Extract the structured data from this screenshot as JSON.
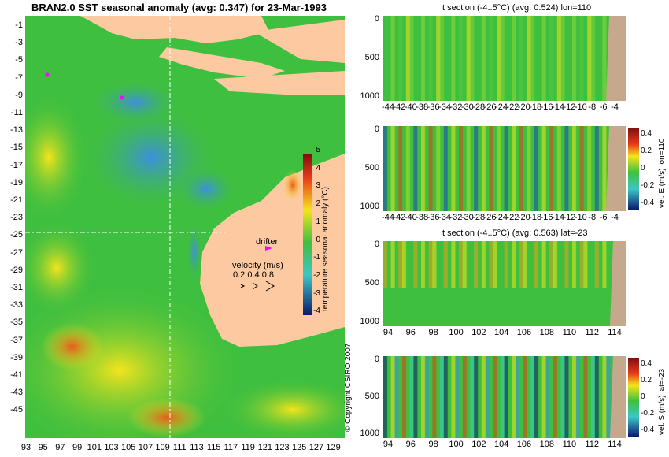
{
  "main_title": "BRAN2.0 SST seasonal anomaly (avg: 0.347) for 23-Mar-1993",
  "map": {
    "x_ticks": [
      "93",
      "95",
      "97",
      "99",
      "101",
      "103",
      "105",
      "107",
      "109",
      "111",
      "113",
      "115",
      "117",
      "119",
      "121",
      "123",
      "125",
      "127",
      "129"
    ],
    "y_ticks": [
      "-1",
      "-3",
      "-5",
      "-7",
      "-9",
      "-11",
      "-13",
      "-15",
      "-17",
      "-19",
      "-21",
      "-23",
      "-25",
      "-27",
      "-29",
      "-31",
      "-33",
      "-35",
      "-37",
      "-39",
      "-41",
      "-43",
      "-45"
    ],
    "drifter_label": "drifter",
    "velocity_title": "velocity (m/s)",
    "velocity_scale": "0.2 0.4 0.8",
    "colorbar_label": "temperature seasonal anomaly (°C)",
    "colorbar_ticks": [
      "5",
      "4",
      "3",
      "2",
      "1",
      "0",
      "-1",
      "-2",
      "-3",
      "-4"
    ],
    "copyright": "© Copyright CSIRO 2007",
    "colors": {
      "ocean": "#3fbf3f",
      "land": "#fdc9a1",
      "warm": "#f2e21a",
      "hot": "#e8391b",
      "cold": "#3e8fe0",
      "drifter": "#ff00ff"
    }
  },
  "panels": [
    {
      "title": "t section (-4..5°C) (avg: 0.524) lon=110",
      "x_ticks": [
        "-44",
        "-42",
        "-40",
        "-38",
        "-36",
        "-34",
        "-32",
        "-30",
        "-28",
        "-26",
        "-24",
        "-22",
        "-20",
        "-18",
        "-16",
        "-14",
        "-12",
        "-10",
        "-8",
        "-6",
        "-4"
      ],
      "y_ticks": [
        "0",
        "500",
        "1000"
      ],
      "colorbar": false
    },
    {
      "title": "",
      "x_ticks": [
        "-44",
        "-42",
        "-40",
        "-38",
        "-36",
        "-34",
        "-32",
        "-30",
        "-28",
        "-26",
        "-24",
        "-22",
        "-20",
        "-18",
        "-16",
        "-14",
        "-12",
        "-10",
        "-8",
        "-6",
        "-4"
      ],
      "y_ticks": [
        "0",
        "500",
        "1000"
      ],
      "colorbar": true,
      "colorbar_label": "vel. E (m/s) lon=110",
      "colorbar_ticks": [
        "0.4",
        "0.2",
        "0",
        "-0.2",
        "-0.4"
      ]
    },
    {
      "title": "t section (-4..5°C) (avg: 0.563) lat=-23",
      "x_ticks": [
        "94",
        "96",
        "98",
        "100",
        "102",
        "104",
        "106",
        "108",
        "110",
        "112",
        "114"
      ],
      "y_ticks": [
        "0",
        "500",
        "1000"
      ],
      "colorbar": false
    },
    {
      "title": "",
      "x_ticks": [
        "94",
        "96",
        "98",
        "100",
        "102",
        "104",
        "106",
        "108",
        "110",
        "112",
        "114"
      ],
      "y_ticks": [
        "0",
        "500",
        "1000"
      ],
      "colorbar": true,
      "colorbar_label": "vel. S (m/s) lat=-23",
      "colorbar_ticks": [
        "0.4",
        "0.2",
        "0",
        "-0.2",
        "-0.4"
      ]
    }
  ],
  "chart_data": [
    {
      "type": "heatmap",
      "title": "BRAN2.0 SST seasonal anomaly (avg: 0.347) for 23-Mar-1993",
      "xlim": [
        93,
        130
      ],
      "ylim": [
        -45,
        0
      ],
      "colorbar_range": [
        -4,
        5
      ],
      "colorbar_label": "temperature seasonal anomaly (°C)",
      "drifter": {
        "lon": 121.5,
        "lat": -24.5
      },
      "section_lines": {
        "lon": 110,
        "lat": -23
      }
    },
    {
      "type": "heatmap",
      "title": "t section (-4..5°C) (avg: 0.524) lon=110",
      "xlim": [
        -45,
        -3
      ],
      "ylim": [
        1050,
        0
      ]
    },
    {
      "type": "heatmap",
      "title": "",
      "xlim": [
        -45,
        -3
      ],
      "ylim": [
        1050,
        0
      ],
      "colorbar_range": [
        -0.4,
        0.4
      ],
      "colorbar_label": "vel. E (m/s) lon=110"
    },
    {
      "type": "heatmap",
      "title": "t section (-4..5°C) (avg: 0.563) lat=-23",
      "xlim": [
        93,
        116
      ],
      "ylim": [
        1050,
        0
      ]
    },
    {
      "type": "heatmap",
      "title": "",
      "xlim": [
        93,
        116
      ],
      "ylim": [
        1050,
        0
      ],
      "colorbar_range": [
        -0.4,
        0.4
      ],
      "colorbar_label": "vel. S (m/s) lat=-23"
    }
  ]
}
